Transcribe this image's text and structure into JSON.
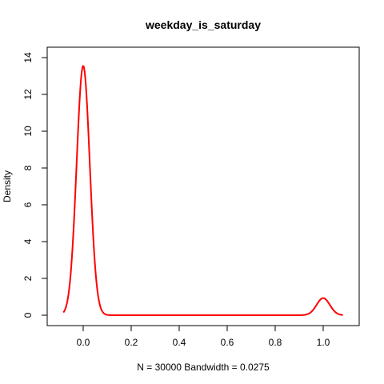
{
  "chart_data": {
    "type": "line",
    "title": "weekday_is_saturday",
    "xlabel": "N = 30000   Bandwidth = 0.0275",
    "ylabel": "Density",
    "xlim": [
      -0.1,
      1.1
    ],
    "ylim": [
      0,
      14
    ],
    "x_ticks": [
      0.0,
      0.2,
      0.4,
      0.6,
      0.8,
      1.0
    ],
    "x_tick_labels": [
      "0.0",
      "0.2",
      "0.4",
      "0.6",
      "0.8",
      "1.0"
    ],
    "y_ticks": [
      0,
      2,
      4,
      6,
      8,
      10,
      12,
      14
    ],
    "y_tick_labels": [
      "0",
      "2",
      "4",
      "6",
      "8",
      "10",
      "12",
      "14"
    ],
    "grid": false,
    "series": [
      {
        "color": "#ff0000",
        "kde": {
          "bandwidth": 0.0275,
          "x_range": [
            -0.0825,
            1.0825
          ],
          "components": [
            {
              "center": 0.0,
              "peak": 13.55
            },
            {
              "center": 1.0,
              "peak": 0.93
            }
          ]
        }
      }
    ]
  }
}
